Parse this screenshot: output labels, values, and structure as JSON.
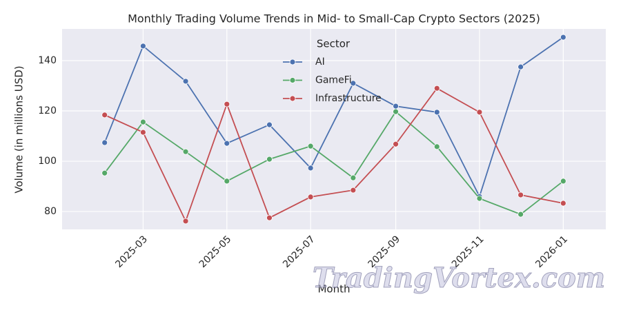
{
  "chart_data": {
    "type": "line",
    "title": "Monthly Trading Volume Trends in Mid- to Small-Cap Crypto Sectors (2025)",
    "xlabel": "Month",
    "ylabel": "Volume (in millions USD)",
    "legend_title": "Sector",
    "legend_position": "upper center",
    "grid": true,
    "watermark": "TradingVortex.com",
    "x": [
      "2025-02",
      "2025-03",
      "2025-04",
      "2025-05",
      "2025-06",
      "2025-07",
      "2025-08",
      "2025-09",
      "2025-10",
      "2025-11",
      "2025-12",
      "2026-01"
    ],
    "xlim": [
      "2025-01",
      "2026-02"
    ],
    "xticks": [
      "2025-03",
      "2025-05",
      "2025-07",
      "2025-09",
      "2025-11",
      "2026-01"
    ],
    "ylim": [
      72.9,
      152.6
    ],
    "yticks": [
      80,
      100,
      120,
      140
    ],
    "series": [
      {
        "name": "AI",
        "color": "#4c72b0",
        "values": [
          107.4,
          145.8,
          131.8,
          107.1,
          114.5,
          97.3,
          131.0,
          121.9,
          119.5,
          86.0,
          137.5,
          149.3
        ]
      },
      {
        "name": "GameFi",
        "color": "#55a868",
        "values": [
          95.3,
          115.6,
          103.8,
          92.1,
          100.8,
          106.0,
          93.4,
          119.7,
          105.8,
          85.2,
          78.9,
          92.1
        ]
      },
      {
        "name": "Infrastructure",
        "color": "#c44e52",
        "values": [
          118.4,
          111.5,
          76.2,
          122.7,
          77.5,
          85.8,
          88.5,
          106.8,
          129.0,
          119.5,
          86.6,
          83.3
        ]
      }
    ]
  }
}
